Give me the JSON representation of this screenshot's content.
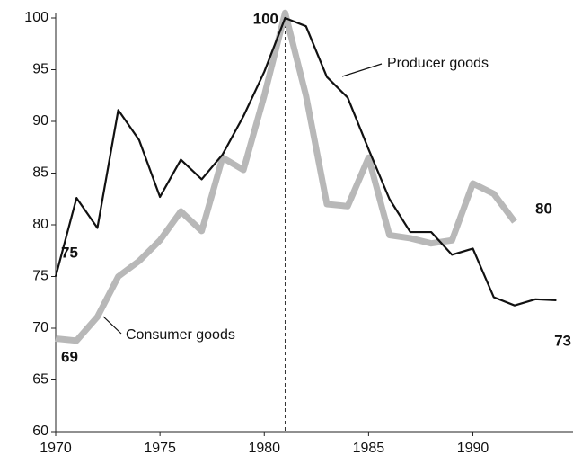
{
  "chart_data": {
    "type": "line",
    "x": [
      1970,
      1971,
      1972,
      1973,
      1974,
      1975,
      1976,
      1977,
      1978,
      1979,
      1980,
      1981,
      1982,
      1983,
      1984,
      1985,
      1986,
      1987,
      1988,
      1989,
      1990,
      1991,
      1992,
      1993,
      1994
    ],
    "series": [
      {
        "name": "Producer goods",
        "color": "#111111",
        "values": [
          75,
          82.6,
          79.7,
          91.1,
          88.2,
          82.7,
          86.3,
          84.4,
          86.8,
          90.5,
          94.8,
          100,
          99.2,
          94.3,
          92.3,
          87.3,
          82.5,
          79.3,
          79.3,
          77.1,
          77.7,
          73,
          72.2,
          72.8,
          72.7
        ]
      },
      {
        "name": "Consumer goods",
        "color": "#b8b8b8",
        "values": [
          69,
          68.8,
          71.1,
          75,
          76.5,
          78.5,
          81.3,
          79.4,
          86.5,
          85.3,
          92.5,
          100.5,
          92.5,
          82,
          81.8,
          86.5,
          79,
          78.7,
          78.2,
          78.5,
          84,
          83,
          80.3,
          null,
          null
        ]
      }
    ],
    "annotations": [
      "100",
      "75",
      "69",
      "80",
      "73"
    ],
    "reference_x": 1981,
    "xlim": [
      1970,
      1994.8
    ],
    "xticks": [
      1970,
      1975,
      1980,
      1985,
      1990
    ],
    "ylim": [
      60,
      100
    ],
    "yticks": [
      60,
      65,
      70,
      75,
      80,
      85,
      90,
      95,
      100
    ]
  }
}
